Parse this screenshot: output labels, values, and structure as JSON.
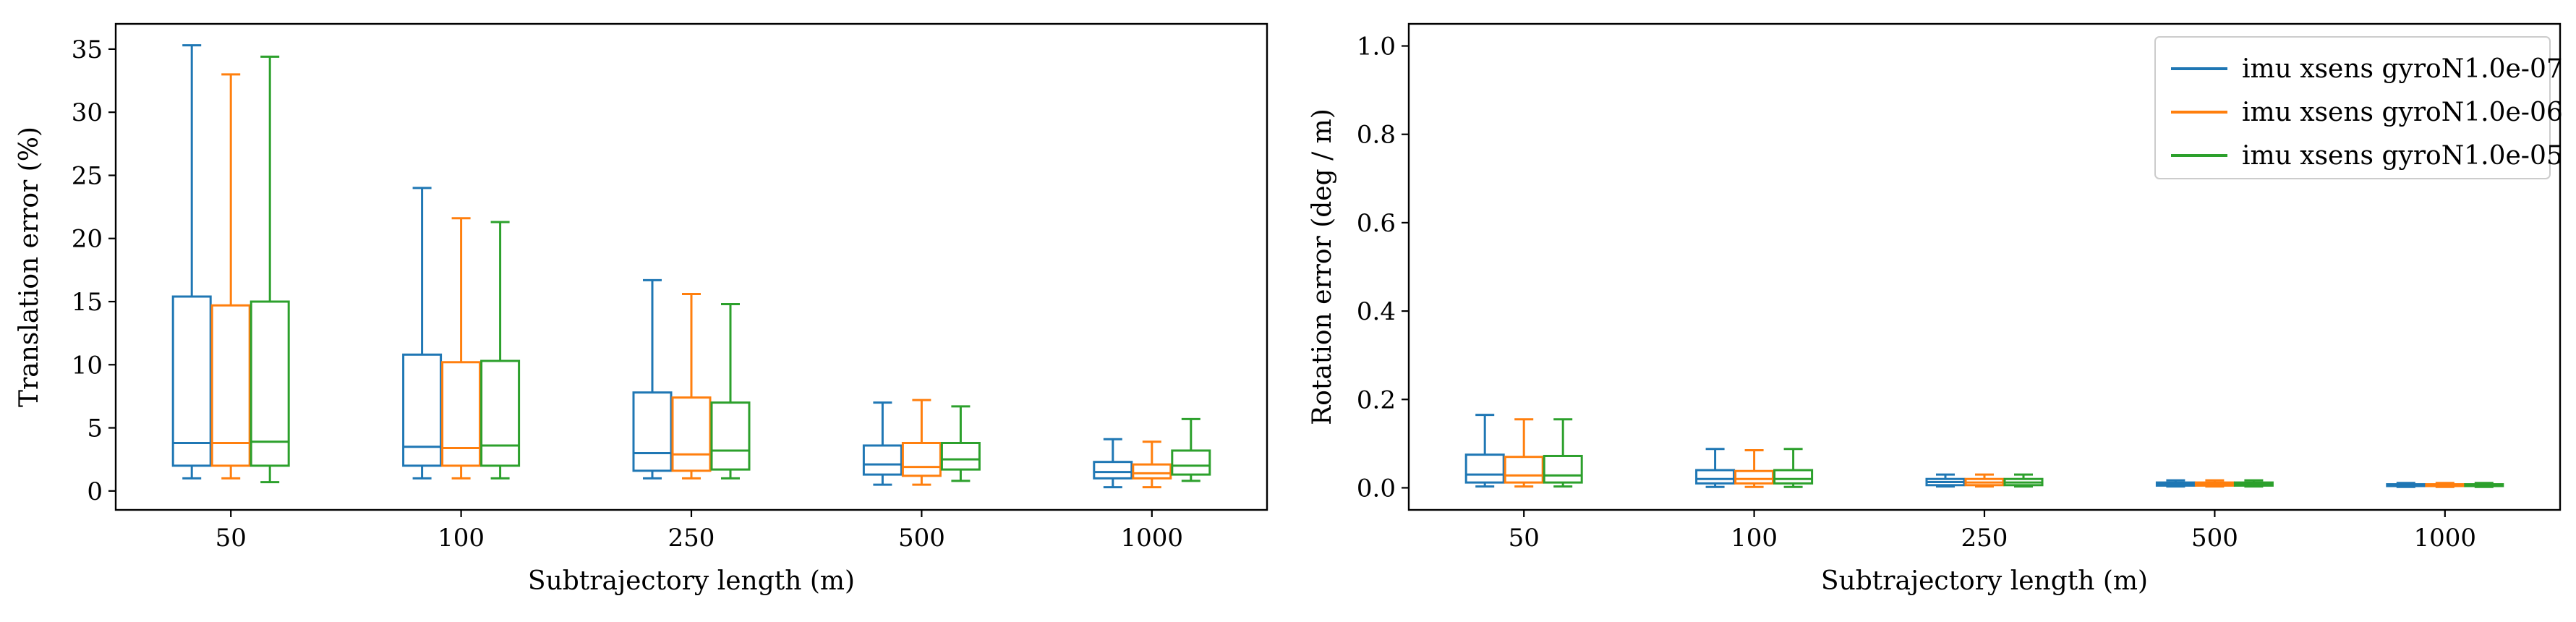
{
  "figure": {
    "title": "",
    "series_colors": [
      "#1f77b4",
      "#ff7f0e",
      "#2ca02c"
    ]
  },
  "chart_data": [
    {
      "type": "box",
      "title": "",
      "xlabel": "Subtrajectory length (m)",
      "ylabel": "Translation error (%)",
      "categories": [
        "50",
        "100",
        "250",
        "500",
        "1000"
      ],
      "ylim": [
        -1.5,
        37
      ],
      "yticks": [
        0,
        5,
        10,
        15,
        20,
        25,
        30,
        35
      ],
      "legend": null,
      "series": [
        {
          "name": "imu xsens gyroN1.0e-07",
          "color": "#1f77b4",
          "boxes": [
            {
              "min": 1.0,
              "q1": 2.0,
              "median": 3.8,
              "q3": 15.4,
              "max": 35.3
            },
            {
              "min": 1.0,
              "q1": 2.0,
              "median": 3.5,
              "q3": 10.8,
              "max": 24.0
            },
            {
              "min": 1.0,
              "q1": 1.6,
              "median": 3.0,
              "q3": 7.8,
              "max": 16.7
            },
            {
              "min": 0.5,
              "q1": 1.3,
              "median": 2.1,
              "q3": 3.6,
              "max": 7.0
            },
            {
              "min": 0.3,
              "q1": 1.0,
              "median": 1.5,
              "q3": 2.3,
              "max": 4.1
            }
          ]
        },
        {
          "name": "imu xsens gyroN1.0e-06",
          "color": "#ff7f0e",
          "boxes": [
            {
              "min": 1.0,
              "q1": 2.0,
              "median": 3.8,
              "q3": 14.7,
              "max": 33.0
            },
            {
              "min": 1.0,
              "q1": 2.0,
              "median": 3.4,
              "q3": 10.2,
              "max": 21.6
            },
            {
              "min": 1.0,
              "q1": 1.6,
              "median": 2.9,
              "q3": 7.4,
              "max": 15.6
            },
            {
              "min": 0.5,
              "q1": 1.2,
              "median": 1.9,
              "q3": 3.8,
              "max": 7.2
            },
            {
              "min": 0.3,
              "q1": 1.0,
              "median": 1.4,
              "q3": 2.1,
              "max": 3.9
            }
          ]
        },
        {
          "name": "imu xsens gyroN1.0e-05",
          "color": "#2ca02c",
          "boxes": [
            {
              "min": 0.7,
              "q1": 2.0,
              "median": 3.9,
              "q3": 15.0,
              "max": 34.4
            },
            {
              "min": 1.0,
              "q1": 2.0,
              "median": 3.6,
              "q3": 10.3,
              "max": 21.3
            },
            {
              "min": 1.0,
              "q1": 1.7,
              "median": 3.2,
              "q3": 7.0,
              "max": 14.8
            },
            {
              "min": 0.8,
              "q1": 1.7,
              "median": 2.5,
              "q3": 3.8,
              "max": 6.7
            },
            {
              "min": 0.8,
              "q1": 1.3,
              "median": 2.0,
              "q3": 3.2,
              "max": 5.7
            }
          ]
        }
      ]
    },
    {
      "type": "box",
      "title": "",
      "xlabel": "Subtrajectory length (m)",
      "ylabel": "Rotation error (deg / m)",
      "categories": [
        "50",
        "100",
        "250",
        "500",
        "1000"
      ],
      "ylim": [
        -0.05,
        1.05
      ],
      "yticks": [
        0.0,
        0.2,
        0.4,
        0.6,
        0.8,
        1.0
      ],
      "ytick_labels": [
        "0.0",
        "0.2",
        "0.4",
        "0.6",
        "0.8",
        "1.0"
      ],
      "legend": "top-right",
      "series": [
        {
          "name": "imu xsens gyroN1.0e-07",
          "color": "#1f77b4",
          "boxes": [
            {
              "min": 0.003,
              "q1": 0.012,
              "median": 0.03,
              "q3": 0.075,
              "max": 0.165
            },
            {
              "min": 0.002,
              "q1": 0.01,
              "median": 0.02,
              "q3": 0.04,
              "max": 0.088
            },
            {
              "min": 0.003,
              "q1": 0.006,
              "median": 0.013,
              "q3": 0.02,
              "max": 0.03
            },
            {
              "min": 0.003,
              "q1": 0.005,
              "median": 0.008,
              "q3": 0.012,
              "max": 0.017
            },
            {
              "min": 0.002,
              "q1": 0.004,
              "median": 0.006,
              "q3": 0.008,
              "max": 0.011
            }
          ]
        },
        {
          "name": "imu xsens gyroN1.0e-06",
          "color": "#ff7f0e",
          "boxes": [
            {
              "min": 0.003,
              "q1": 0.012,
              "median": 0.028,
              "q3": 0.07,
              "max": 0.155
            },
            {
              "min": 0.002,
              "q1": 0.01,
              "median": 0.02,
              "q3": 0.038,
              "max": 0.085
            },
            {
              "min": 0.003,
              "q1": 0.006,
              "median": 0.012,
              "q3": 0.02,
              "max": 0.03
            },
            {
              "min": 0.003,
              "q1": 0.005,
              "median": 0.008,
              "q3": 0.012,
              "max": 0.017
            },
            {
              "min": 0.002,
              "q1": 0.004,
              "median": 0.006,
              "q3": 0.008,
              "max": 0.011
            }
          ]
        },
        {
          "name": "imu xsens gyroN1.0e-05",
          "color": "#2ca02c",
          "boxes": [
            {
              "min": 0.003,
              "q1": 0.012,
              "median": 0.028,
              "q3": 0.072,
              "max": 0.155
            },
            {
              "min": 0.002,
              "q1": 0.01,
              "median": 0.02,
              "q3": 0.04,
              "max": 0.088
            },
            {
              "min": 0.003,
              "q1": 0.006,
              "median": 0.012,
              "q3": 0.02,
              "max": 0.03
            },
            {
              "min": 0.003,
              "q1": 0.005,
              "median": 0.008,
              "q3": 0.012,
              "max": 0.017
            },
            {
              "min": 0.002,
              "q1": 0.004,
              "median": 0.006,
              "q3": 0.008,
              "max": 0.011
            }
          ]
        }
      ]
    }
  ]
}
